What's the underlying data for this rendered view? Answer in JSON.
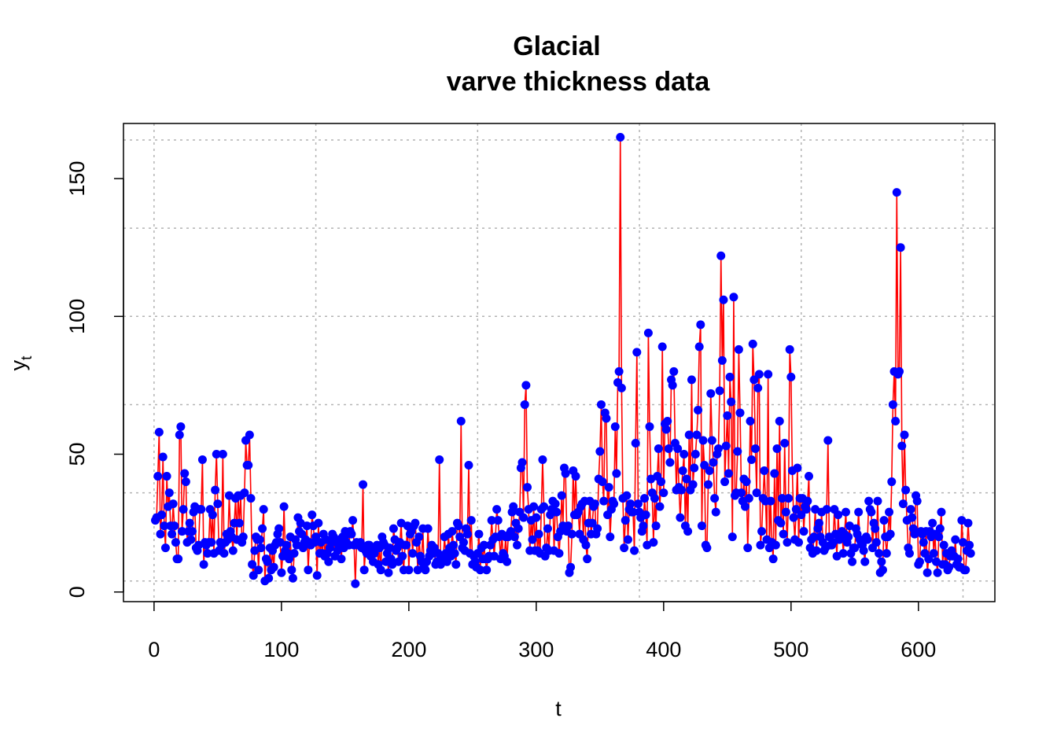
{
  "chart_data": {
    "type": "line",
    "title_line1": "Glacial",
    "title_line2": "varve thickness data",
    "xlabel": "t",
    "ylabel": "y",
    "ylabel_subscript": "t",
    "xlim": [
      -24,
      660
    ],
    "ylim": [
      -3.5,
      170
    ],
    "x_ticks": [
      0,
      100,
      200,
      300,
      400,
      500,
      600
    ],
    "y_ticks": [
      0,
      50,
      100,
      150
    ],
    "x_tick_labels": [
      "0",
      "100",
      "200",
      "300",
      "400",
      "500",
      "600"
    ],
    "y_tick_labels": [
      "0",
      "50",
      "100",
      "150"
    ],
    "grid": true,
    "grid_x": [
      0,
      127,
      254,
      381,
      508,
      635
    ],
    "grid_y": [
      4,
      36,
      68,
      100,
      132,
      164
    ],
    "line_color": "#ff0000",
    "point_color": "#0000ff",
    "series": [
      {
        "values": [
          26,
          27,
          42,
          58,
          21,
          28,
          49,
          24,
          16,
          42,
          31,
          36,
          24,
          21,
          32,
          24,
          18,
          12,
          12,
          57,
          60,
          22,
          30,
          43,
          40,
          18,
          22,
          25,
          19,
          22,
          29,
          31,
          16,
          15,
          17,
          30,
          30,
          48,
          10,
          18,
          17,
          14,
          18,
          30,
          18,
          28,
          14,
          37,
          50,
          32,
          15,
          18,
          17,
          50,
          14,
          18,
          21,
          19,
          35,
          22,
          20,
          15,
          25,
          34,
          19,
          35,
          25,
          35,
          18,
          20,
          36,
          55,
          46,
          46,
          57,
          34,
          10,
          6,
          15,
          20,
          19,
          8,
          19,
          16,
          23,
          30,
          4,
          12,
          11,
          5,
          16,
          8,
          15,
          9,
          17,
          18,
          21,
          23,
          18,
          7,
          13,
          31,
          15,
          17,
          14,
          12,
          20,
          8,
          5,
          14,
          19,
          17,
          27,
          22,
          25,
          21,
          16,
          18,
          19,
          24,
          8,
          18,
          17,
          28,
          24,
          18,
          20,
          6,
          25,
          14,
          18,
          14,
          21,
          13,
          19,
          14,
          11,
          16,
          18,
          21,
          20,
          13,
          18,
          15,
          17,
          19,
          12,
          20,
          16,
          22,
          18,
          21,
          17,
          22,
          21,
          26,
          17,
          3,
          18,
          17,
          17,
          18,
          16,
          39,
          8,
          15,
          14,
          17,
          17,
          13,
          15,
          11,
          14,
          16,
          17,
          10,
          16,
          8,
          20,
          18,
          17,
          11,
          14,
          7,
          16,
          12,
          10,
          23,
          19,
          15,
          16,
          11,
          18,
          25,
          13,
          8,
          17,
          17,
          24,
          8,
          21,
          22,
          14,
          24,
          25,
          18,
          8,
          20,
          13,
          11,
          23,
          9,
          8,
          11,
          23,
          13,
          15,
          17,
          14,
          16,
          10,
          11,
          14,
          48,
          10,
          13,
          12,
          20,
          14,
          11,
          21,
          16,
          13,
          22,
          17,
          14,
          10,
          25,
          24,
          20,
          62,
          16,
          18,
          15,
          23,
          21,
          46,
          14,
          26,
          10,
          13,
          11,
          9,
          14,
          21,
          8,
          16,
          12,
          17,
          12,
          8,
          12,
          13,
          17,
          26,
          19,
          13,
          20,
          30,
          26,
          20,
          12,
          21,
          14,
          13,
          20,
          11,
          20,
          21,
          22,
          29,
          31,
          20,
          25,
          17,
          23,
          29,
          45,
          47,
          27,
          68,
          75,
          38,
          30,
          15,
          26,
          19,
          31,
          15,
          27,
          15,
          21,
          14,
          30,
          48,
          31,
          13,
          16,
          23,
          15,
          28,
          30,
          33,
          15,
          32,
          29,
          20,
          14,
          22,
          35,
          24,
          45,
          43,
          22,
          24,
          7,
          9,
          21,
          44,
          28,
          42,
          28,
          29,
          21,
          31,
          32,
          19,
          33,
          17,
          12,
          25,
          33,
          21,
          25,
          31,
          32,
          21,
          23,
          41,
          51,
          68,
          40,
          33,
          65,
          63,
          28,
          38,
          20,
          30,
          33,
          32,
          60,
          43,
          76,
          80,
          165,
          74,
          34,
          16,
          26,
          35,
          19,
          30,
          32,
          29,
          29,
          15,
          54,
          87,
          32,
          29,
          27,
          22,
          24,
          34,
          28,
          17,
          94,
          60,
          41,
          36,
          18,
          34,
          24,
          42,
          52,
          31,
          40,
          89,
          36,
          61,
          59,
          62,
          52,
          47,
          77,
          75,
          80,
          54,
          37,
          52,
          38,
          27,
          37,
          44,
          50,
          24,
          41,
          22,
          57,
          37,
          77,
          39,
          45,
          50,
          57,
          66,
          89,
          97,
          24,
          55,
          46,
          17,
          16,
          39,
          44,
          72,
          55,
          47,
          34,
          29,
          50,
          52,
          73,
          122,
          84,
          106,
          40,
          53,
          64,
          43,
          78,
          69,
          20,
          107,
          35,
          36,
          51,
          88,
          65,
          36,
          33,
          41,
          31,
          40,
          16,
          34,
          62,
          48,
          90,
          77,
          52,
          36,
          74,
          79,
          17,
          22,
          34,
          44,
          33,
          19,
          79,
          16,
          33,
          18,
          12,
          43,
          17,
          52,
          26,
          62,
          25,
          34,
          21,
          54,
          29,
          18,
          34,
          88,
          78,
          44,
          27,
          19,
          30,
          45,
          18,
          34,
          28,
          34,
          22,
          31,
          30,
          33,
          42,
          16,
          19,
          14,
          20,
          30,
          15,
          23,
          25,
          20,
          29,
          18,
          15,
          16,
          30,
          55,
          20,
          17,
          17,
          18,
          30,
          21,
          13,
          28,
          19,
          20,
          22,
          14,
          21,
          29,
          18,
          20,
          24,
          14,
          11,
          16,
          16,
          23,
          21,
          29,
          19,
          18,
          17,
          15,
          11,
          20,
          19,
          33,
          30,
          29,
          16,
          25,
          23,
          18,
          33,
          14,
          7,
          11,
          8,
          26,
          20,
          14,
          20,
          29,
          21,
          40,
          68,
          80,
          62,
          145,
          79,
          80,
          125,
          53,
          32,
          57,
          37,
          26,
          16,
          14,
          30,
          27,
          23,
          21,
          35,
          33,
          10,
          11,
          22,
          21,
          18,
          14,
          22,
          7,
          12,
          22,
          20,
          25,
          14,
          21,
          11,
          7,
          20,
          23,
          29,
          10,
          17,
          10,
          14,
          8,
          9,
          13,
          15,
          13,
          13,
          19,
          10,
          12,
          9,
          9,
          26,
          18,
          8,
          8,
          15,
          25,
          17,
          14
        ]
      }
    ]
  }
}
